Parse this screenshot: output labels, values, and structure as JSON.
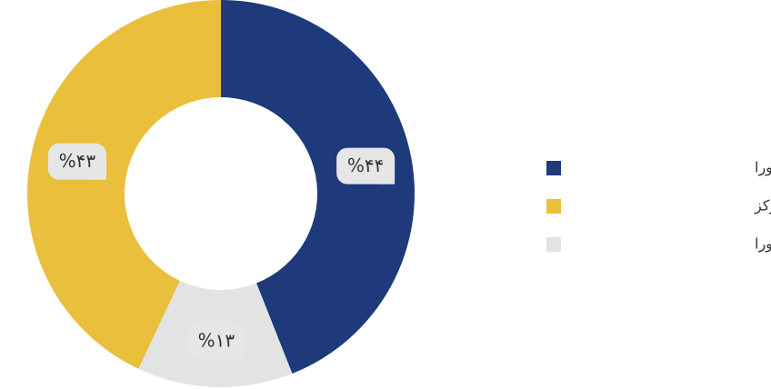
{
  "chart_data": {
    "type": "donut",
    "categories": [
      "تعداد طرح پرونده در شورا",
      "پذیرش اولیه شورا",
      "معرفی به آموزش / مرکز"
    ],
    "values": [
      44,
      13,
      43
    ],
    "value_labels": [
      "%۴۴",
      "%۱۳",
      "%۴۳"
    ],
    "colors": [
      "#1e3a7b",
      "#e3e3e3",
      "#e9bf3b"
    ],
    "legend_order": [
      0,
      2,
      1
    ],
    "legend": "right"
  }
}
